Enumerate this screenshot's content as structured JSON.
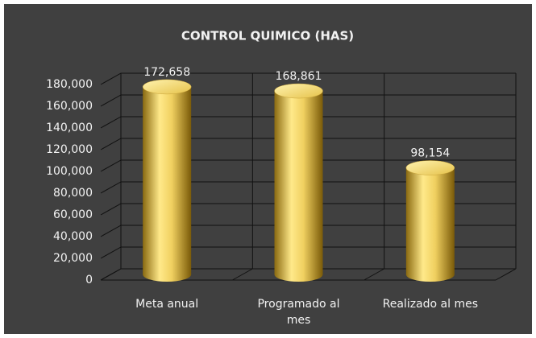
{
  "chart_data": {
    "type": "bar3d",
    "title": "CONTROL QUIMICO (HAS)",
    "categories": [
      "Meta anual",
      "Programado al mes",
      "Realizado al mes"
    ],
    "values": [
      172658,
      168861,
      98154
    ],
    "value_labels": [
      "172,658",
      "168,861",
      "98,154"
    ],
    "color": "#f0d060",
    "ylim": [
      0,
      180000
    ],
    "yticks": [
      0,
      {
        "value": 20000,
        "label": "20,000"
      },
      {
        "value": 40000,
        "label": "40,000"
      },
      {
        "value": 60000,
        "label": "60,000"
      },
      {
        "value": 80000,
        "label": "80,000"
      },
      {
        "value": 100000,
        "label": "100,000"
      },
      {
        "value": 120000,
        "label": "120,000"
      },
      {
        "value": 140000,
        "label": "140,000"
      },
      {
        "value": 160000,
        "label": "160,000"
      },
      {
        "value": 180000,
        "label": "180,000"
      }
    ],
    "grid": true
  }
}
